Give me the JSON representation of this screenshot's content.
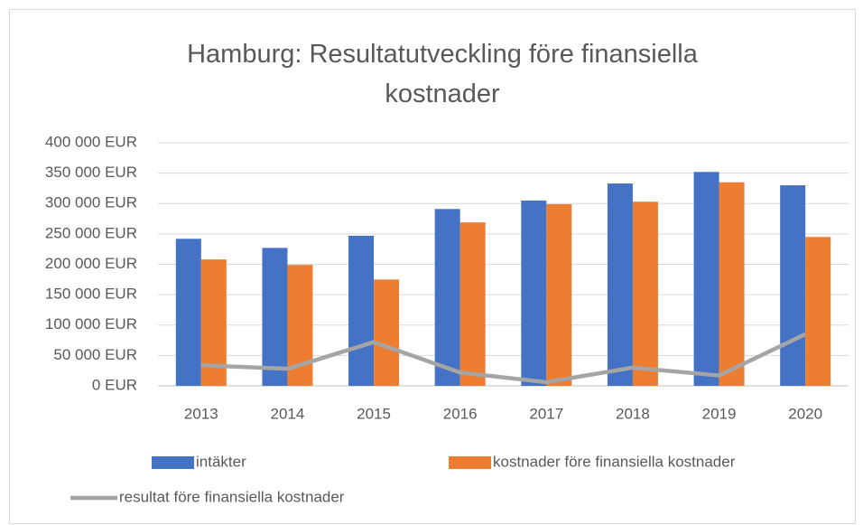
{
  "chart_data": {
    "type": "bar_line",
    "title": "Hamburg: Resultatutveckling före finansiella kostnader",
    "categories": [
      "2013",
      "2014",
      "2015",
      "2016",
      "2017",
      "2018",
      "2019",
      "2020"
    ],
    "series": [
      {
        "name": "intäkter",
        "color": "#4472c4",
        "type": "bar",
        "values": [
          242000,
          227000,
          247000,
          291000,
          305000,
          333000,
          352000,
          330000
        ]
      },
      {
        "name": "kostnader före finansiella kostnader",
        "color": "#ed7d31",
        "type": "bar",
        "values": [
          208000,
          199000,
          175000,
          269000,
          299000,
          303000,
          335000,
          245000
        ]
      },
      {
        "name": "resultat före finansiella kostnader",
        "color": "#a5a5a5",
        "type": "line",
        "values": [
          34000,
          28000,
          72000,
          22000,
          6000,
          30000,
          17000,
          85000
        ]
      }
    ],
    "ylim": [
      0,
      400000
    ],
    "yticks": [
      {
        "value": 0,
        "label": "0 EUR"
      },
      {
        "value": 50000,
        "label": "50 000 EUR"
      },
      {
        "value": 100000,
        "label": "100 000 EUR"
      },
      {
        "value": 150000,
        "label": "150 000 EUR"
      },
      {
        "value": 200000,
        "label": "200 000 EUR"
      },
      {
        "value": 250000,
        "label": "250 000 EUR"
      },
      {
        "value": 300000,
        "label": "300 000 EUR"
      },
      {
        "value": 350000,
        "label": "350 000 EUR"
      },
      {
        "value": 400000,
        "label": "400 000 EUR"
      }
    ],
    "grid": true,
    "legend": "bottom"
  }
}
